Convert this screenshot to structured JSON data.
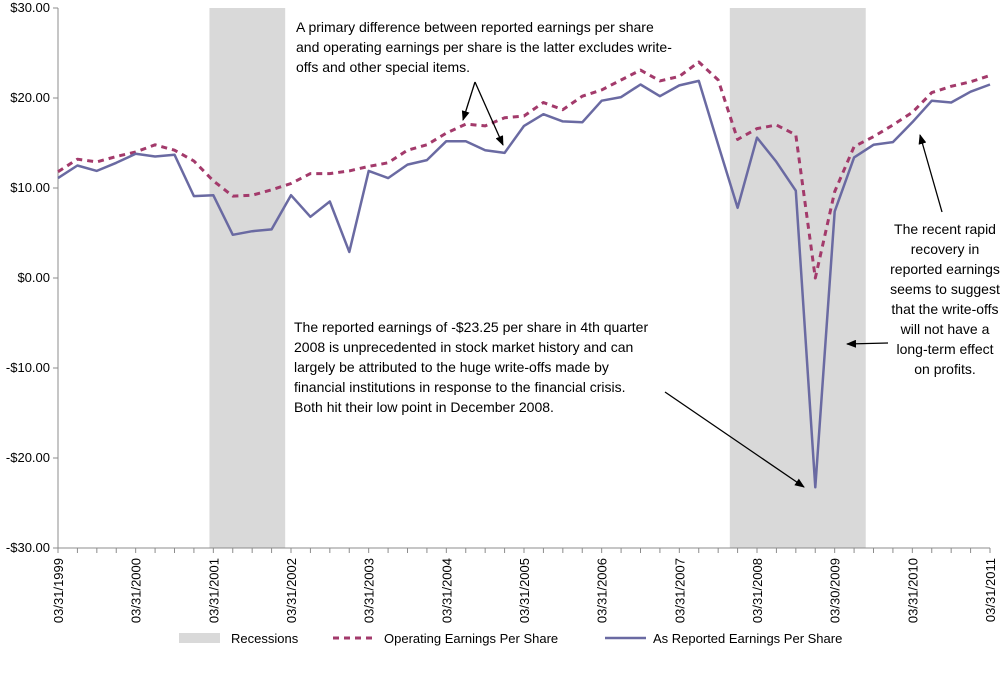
{
  "chart_data": {
    "type": "line",
    "y_ticks": [
      "$30.00",
      "$20.00",
      "$10.00",
      "$0.00",
      "-$10.00",
      "-$20.00",
      "-$30.00"
    ],
    "ylim": [
      -30,
      30
    ],
    "x_tick_labels": [
      "03/31/1999",
      "03/31/2000",
      "03/31/2001",
      "03/31/2002",
      "03/31/2003",
      "03/31/2004",
      "03/31/2005",
      "03/31/2006",
      "03/31/2007",
      "03/31/2008",
      "03/30/2009",
      "03/31/2010",
      "03/31/2011"
    ],
    "recessions": [
      {
        "start": "2001-Q1.8",
        "from_index": 7.8,
        "to_index": 11.7
      },
      {
        "start": "2007-Q4",
        "from_index": 34.6,
        "to_index": 41.6
      }
    ],
    "n_points": 49,
    "series": [
      {
        "name": "Operating Earnings Per Share",
        "color": "#a33a6b",
        "style": "dashed",
        "values": [
          11.8,
          13.2,
          12.9,
          13.5,
          14.0,
          14.8,
          14.2,
          13.0,
          10.8,
          9.1,
          9.2,
          9.8,
          10.5,
          11.6,
          11.6,
          11.9,
          12.4,
          12.8,
          14.2,
          14.8,
          16.1,
          17.1,
          16.9,
          17.8,
          18.0,
          19.5,
          18.7,
          20.2,
          20.9,
          22.0,
          23.1,
          21.9,
          22.4,
          24.0,
          22.0,
          15.4,
          16.6,
          17.0,
          15.9,
          0.0,
          9.6,
          14.6,
          15.7,
          17.0,
          18.4,
          20.6,
          21.3,
          21.8,
          22.5
        ]
      },
      {
        "name": "As Reported Earnings Per Share",
        "color": "#6a6aa2",
        "style": "solid",
        "values": [
          11.1,
          12.5,
          11.9,
          12.8,
          13.8,
          13.5,
          13.7,
          9.1,
          9.2,
          4.8,
          5.2,
          5.4,
          9.2,
          6.8,
          8.5,
          2.9,
          11.9,
          11.1,
          12.6,
          13.1,
          15.2,
          15.2,
          14.2,
          13.9,
          16.9,
          18.2,
          17.4,
          17.3,
          19.7,
          20.1,
          21.5,
          20.2,
          21.4,
          21.9,
          14.8,
          7.8,
          15.6,
          12.9,
          9.7,
          -23.25,
          7.4,
          13.4,
          14.8,
          15.1,
          17.3,
          19.7,
          19.5,
          20.7,
          21.5
        ]
      }
    ],
    "legend": {
      "position": "bottom",
      "items": [
        {
          "label": "Recessions",
          "kind": "box",
          "color": "#d9d9d9"
        },
        {
          "label": "Operating Earnings Per Share",
          "kind": "dashed",
          "color": "#a33a6b"
        },
        {
          "label": "As Reported Earnings Per Share",
          "kind": "solid",
          "color": "#6a6aa2"
        }
      ]
    },
    "annotations": {
      "top": "A primary difference between reported earnings per share and operating earnings per share is the latter excludes write-offs and other special items.",
      "middle": "The reported earnings of -$23.25 per share in 4th quarter 2008 is unprecedented in stock market history and can largely be attributed to the huge write-offs made by financial institutions in response to the financial crisis. Both hit their low point in December 2008.",
      "right": "The recent rapid recovery in reported earnings seems to suggest that the write-offs will not have a long-term effect on profits."
    }
  }
}
